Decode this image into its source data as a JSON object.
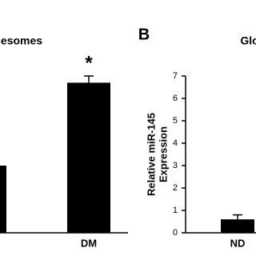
{
  "chart_data": [
    {
      "type": "bar",
      "title": "esomes",
      "categories": [
        null,
        "DM"
      ],
      "values": [
        3.0,
        6.7
      ],
      "errors": [
        null,
        0.3
      ],
      "color": "#000000",
      "ylim": [
        0,
        7
      ],
      "annotations": [
        null,
        "*"
      ]
    },
    {
      "type": "bar",
      "panel": "B",
      "title": "Glo",
      "ylabel": [
        "Relative miR-145",
        "Expression"
      ],
      "categories": [
        "ND"
      ],
      "values": [
        0.6
      ],
      "errors": [
        0.2
      ],
      "color": "#000000",
      "ylim": [
        0,
        7
      ],
      "yticks": [
        0,
        1,
        2,
        3,
        4,
        5,
        6,
        7
      ]
    }
  ]
}
